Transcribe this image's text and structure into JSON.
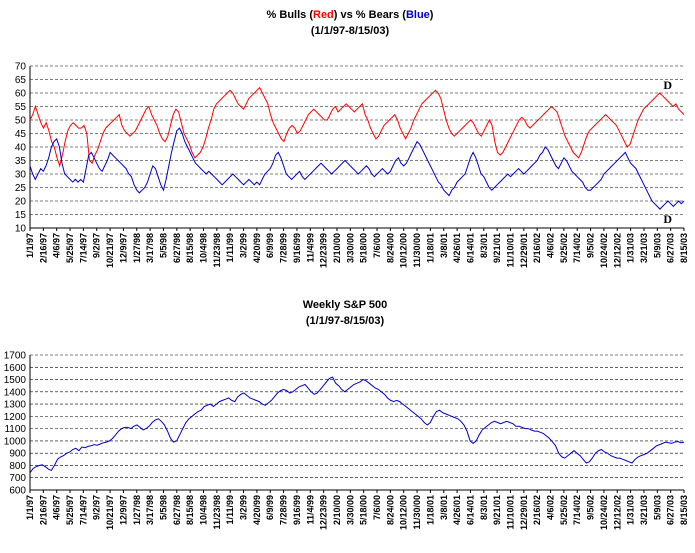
{
  "chart_data": [
    {
      "type": "line",
      "title_parts": [
        {
          "text": "% Bulls (",
          "color": "#000000"
        },
        {
          "text": "Red",
          "color": "#ff0000"
        },
        {
          "text": ") vs % Bears (",
          "color": "#000000"
        },
        {
          "text": "Blue",
          "color": "#0000cc"
        },
        {
          "text": ")",
          "color": "#000000"
        }
      ],
      "subtitle": "(1/1/97-8/15/03)",
      "ylim": [
        10,
        70
      ],
      "yticks": [
        10,
        15,
        20,
        25,
        30,
        35,
        40,
        45,
        50,
        55,
        60,
        65,
        70
      ],
      "grid": true,
      "xtick_labels": [
        "1/1/97",
        "2/16/97",
        "4/6/97",
        "5/25/97",
        "7/14/97",
        "9/2/97",
        "10/21/97",
        "12/9/97",
        "1/27/98",
        "3/17/98",
        "5/5/98",
        "6/27/98",
        "8/15/98",
        "10/4/98",
        "11/23/98",
        "1/11/99",
        "3/2/99",
        "4/20/99",
        "6/9/99",
        "7/28/99",
        "9/16/99",
        "11/4/99",
        "12/23/99",
        "2/10/00",
        "3/30/00",
        "5/18/00",
        "7/6/00",
        "8/24/00",
        "10/12/00",
        "11/30/00",
        "1/18/01",
        "3/8/01",
        "4/26/01",
        "6/14/01",
        "8/3/01",
        "9/21/01",
        "11/10/01",
        "12/29/01",
        "2/16/02",
        "4/6/02",
        "5/25/02",
        "7/14/02",
        "9/5/02",
        "10/24/02",
        "12/12/02",
        "1/31/03",
        "3/21/03",
        "5/9/03",
        "6/27/03",
        "8/15/03"
      ],
      "series": [
        {
          "color": "#ff0000",
          "values": [
            50,
            52,
            55,
            52,
            49,
            47,
            49,
            46,
            42,
            40,
            36,
            33,
            37,
            42,
            46,
            48,
            49,
            48,
            47,
            47,
            48,
            45,
            35,
            34,
            37,
            39,
            42,
            45,
            47,
            48,
            49,
            50,
            51,
            52,
            48,
            46,
            45,
            44,
            45,
            46,
            48,
            50,
            52,
            54,
            55,
            52,
            50,
            48,
            45,
            43,
            42,
            44,
            48,
            52,
            54,
            53,
            49,
            45,
            43,
            41,
            38,
            36,
            37,
            38,
            40,
            43,
            47,
            50,
            54,
            56,
            57,
            58,
            59,
            60,
            61,
            60,
            58,
            56,
            55,
            54,
            56,
            58,
            59,
            60,
            61,
            62,
            60,
            58,
            56,
            52,
            49,
            47,
            45,
            43,
            42,
            45,
            47,
            48,
            47,
            45,
            46,
            48,
            50,
            52,
            53,
            54,
            53,
            52,
            51,
            50,
            50,
            52,
            54,
            55,
            53,
            54,
            55,
            56,
            55,
            54,
            53,
            54,
            55,
            56,
            52,
            50,
            47,
            45,
            43,
            44,
            46,
            48,
            49,
            50,
            51,
            52,
            50,
            47,
            45,
            43,
            45,
            47,
            50,
            52,
            54,
            56,
            57,
            58,
            59,
            60,
            61,
            60,
            58,
            54,
            50,
            47,
            45,
            44,
            45,
            46,
            47,
            48,
            49,
            50,
            49,
            47,
            45,
            44,
            46,
            48,
            50,
            48,
            42,
            38,
            37,
            38,
            40,
            42,
            44,
            46,
            48,
            50,
            51,
            50,
            48,
            47,
            48,
            49,
            50,
            51,
            52,
            53,
            54,
            55,
            54,
            53,
            50,
            47,
            44,
            42,
            40,
            38,
            37,
            36,
            38,
            41,
            44,
            46,
            47,
            48,
            49,
            50,
            51,
            52,
            51,
            50,
            49,
            48,
            46,
            44,
            42,
            40,
            41,
            44,
            47,
            50,
            52,
            54,
            55,
            56,
            57,
            58,
            59,
            60,
            59,
            58,
            57,
            56,
            55,
            56,
            54,
            53,
            52
          ]
        },
        {
          "color": "#0000cc",
          "values": [
            33,
            30,
            28,
            30,
            32,
            31,
            33,
            36,
            40,
            42,
            43,
            40,
            34,
            30,
            29,
            28,
            27,
            28,
            27,
            28,
            27,
            32,
            37,
            38,
            36,
            34,
            32,
            31,
            33,
            35,
            38,
            37,
            36,
            35,
            34,
            33,
            32,
            30,
            29,
            26,
            24,
            23,
            24,
            25,
            27,
            30,
            33,
            32,
            29,
            26,
            24,
            28,
            33,
            38,
            42,
            46,
            47,
            45,
            42,
            40,
            38,
            36,
            34,
            33,
            32,
            31,
            30,
            31,
            30,
            29,
            28,
            27,
            26,
            27,
            28,
            29,
            30,
            29,
            28,
            27,
            26,
            27,
            28,
            27,
            26,
            27,
            26,
            28,
            30,
            31,
            32,
            34,
            37,
            38,
            36,
            33,
            30,
            29,
            28,
            29,
            30,
            31,
            29,
            28,
            29,
            30,
            31,
            32,
            33,
            34,
            33,
            32,
            31,
            30,
            31,
            32,
            33,
            34,
            35,
            34,
            33,
            32,
            31,
            30,
            31,
            32,
            33,
            32,
            30,
            29,
            30,
            31,
            32,
            31,
            30,
            31,
            33,
            35,
            36,
            34,
            33,
            34,
            36,
            38,
            40,
            42,
            41,
            39,
            37,
            35,
            33,
            31,
            29,
            27,
            26,
            24,
            23,
            22,
            24,
            25,
            27,
            28,
            29,
            30,
            33,
            36,
            38,
            36,
            33,
            30,
            29,
            27,
            25,
            24,
            25,
            26,
            27,
            28,
            29,
            30,
            29,
            30,
            31,
            32,
            31,
            30,
            31,
            32,
            33,
            34,
            35,
            37,
            38,
            40,
            39,
            37,
            35,
            33,
            32,
            34,
            36,
            35,
            33,
            31,
            30,
            29,
            28,
            27,
            25,
            24,
            24,
            25,
            26,
            27,
            28,
            30,
            31,
            32,
            33,
            34,
            35,
            36,
            37,
            38,
            36,
            34,
            33,
            32,
            30,
            28,
            26,
            24,
            22,
            20,
            19,
            18,
            17,
            18,
            19,
            20,
            19,
            18,
            19,
            20,
            19,
            20
          ]
        }
      ],
      "annotations": [
        {
          "text": "D",
          "x": "6/27/03",
          "y": 60,
          "position": "above"
        },
        {
          "text": "D",
          "x": "6/27/03",
          "y": 17,
          "position": "below"
        }
      ]
    },
    {
      "type": "line",
      "title": "Weekly S&P 500",
      "subtitle": "(1/1/97-8/15/03)",
      "ylim": [
        600,
        1700
      ],
      "yticks": [
        600,
        700,
        800,
        900,
        1000,
        1100,
        1200,
        1300,
        1400,
        1500,
        1600,
        1700
      ],
      "grid": true,
      "xtick_labels": [
        "1/1/97",
        "2/16/97",
        "4/6/97",
        "5/25/97",
        "7/14/97",
        "9/2/97",
        "10/21/97",
        "12/9/97",
        "1/27/98",
        "3/17/98",
        "5/5/98",
        "6/27/98",
        "8/15/98",
        "10/4/98",
        "11/23/98",
        "1/11/99",
        "3/2/99",
        "4/20/99",
        "6/9/99",
        "7/28/99",
        "9/16/99",
        "11/4/99",
        "12/23/99",
        "2/10/00",
        "3/30/00",
        "5/18/00",
        "7/6/00",
        "8/24/00",
        "10/12/00",
        "11/30/00",
        "1/18/01",
        "3/8/01",
        "4/26/01",
        "6/14/01",
        "8/3/01",
        "9/21/01",
        "11/10/01",
        "12/29/01",
        "2/16/02",
        "4/6/02",
        "5/25/02",
        "7/14/02",
        "9/5/02",
        "10/24/02",
        "12/12/02",
        "1/31/03",
        "3/21/03",
        "5/9/03",
        "6/27/03",
        "8/15/03"
      ],
      "series": [
        {
          "color": "#0000cc",
          "values": [
            740,
            775,
            790,
            800,
            805,
            790,
            770,
            760,
            800,
            850,
            870,
            880,
            900,
            910,
            930,
            940,
            920,
            950,
            945,
            955,
            960,
            970,
            965,
            975,
            985,
            990,
            1000,
            1020,
            1050,
            1080,
            1100,
            1110,
            1110,
            1100,
            1120,
            1130,
            1110,
            1090,
            1100,
            1120,
            1150,
            1170,
            1180,
            1160,
            1130,
            1080,
            1020,
            990,
            1000,
            1050,
            1100,
            1150,
            1180,
            1200,
            1220,
            1240,
            1250,
            1280,
            1290,
            1300,
            1280,
            1300,
            1320,
            1330,
            1340,
            1350,
            1330,
            1320,
            1360,
            1380,
            1390,
            1370,
            1350,
            1340,
            1330,
            1320,
            1300,
            1290,
            1310,
            1330,
            1360,
            1390,
            1410,
            1420,
            1410,
            1390,
            1400,
            1420,
            1440,
            1450,
            1460,
            1430,
            1400,
            1380,
            1390,
            1420,
            1450,
            1480,
            1510,
            1520,
            1470,
            1450,
            1420,
            1400,
            1420,
            1440,
            1460,
            1470,
            1480,
            1500,
            1490,
            1470,
            1450,
            1430,
            1420,
            1400,
            1380,
            1350,
            1330,
            1320,
            1330,
            1320,
            1300,
            1280,
            1260,
            1240,
            1220,
            1200,
            1180,
            1150,
            1130,
            1150,
            1200,
            1240,
            1250,
            1230,
            1220,
            1210,
            1200,
            1190,
            1180,
            1160,
            1130,
            1080,
            1000,
            980,
            1000,
            1050,
            1090,
            1110,
            1130,
            1150,
            1160,
            1150,
            1140,
            1150,
            1160,
            1150,
            1140,
            1120,
            1120,
            1110,
            1100,
            1100,
            1090,
            1080,
            1080,
            1070,
            1060,
            1040,
            1020,
            990,
            960,
            900,
            870,
            860,
            880,
            900,
            920,
            900,
            880,
            850,
            820,
            830,
            860,
            900,
            920,
            930,
            910,
            900,
            880,
            870,
            860,
            860,
            850,
            840,
            830,
            820,
            850,
            870,
            880,
            890,
            900,
            920,
            940,
            960,
            970,
            980,
            990,
            985,
            980,
            990,
            995,
            985,
            990
          ]
        }
      ]
    }
  ]
}
